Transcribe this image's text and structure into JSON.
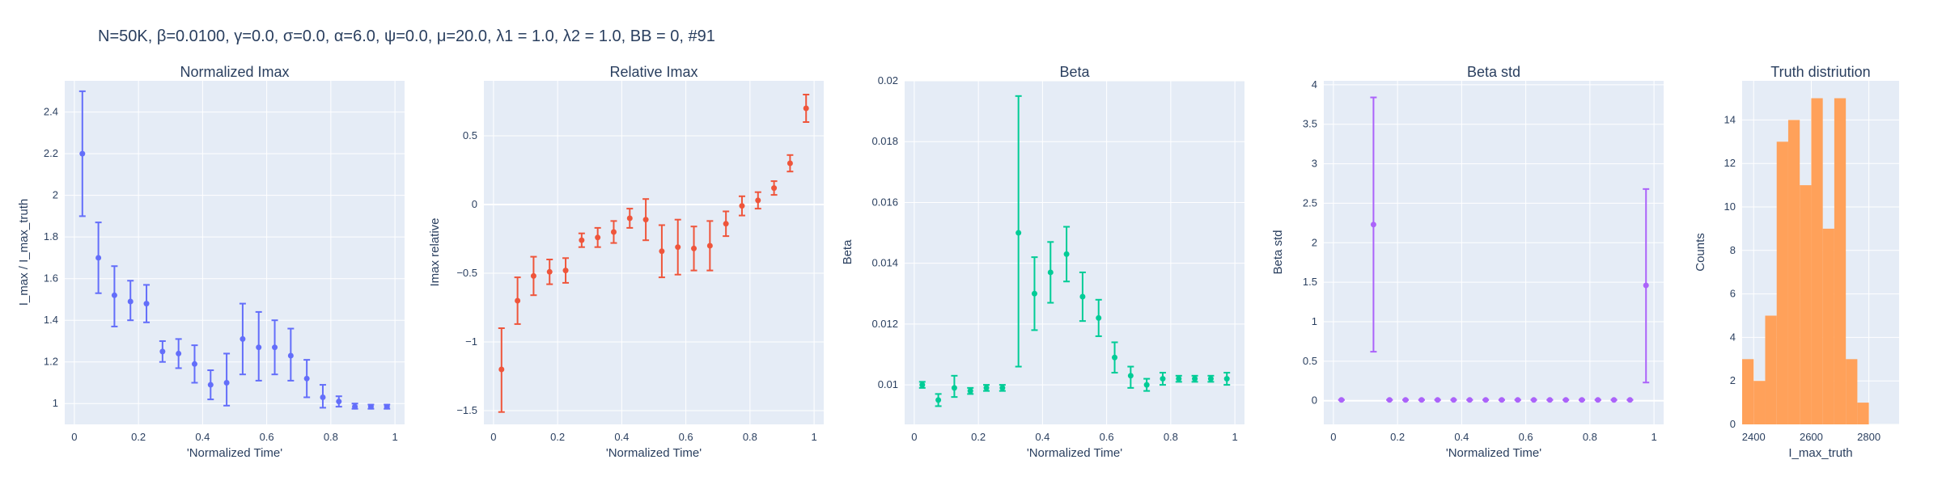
{
  "figure_title": "N=50K, β=0.0100, γ=0.0, σ=0.0,  α=6.0, ψ=0.0, μ=20.0, λ1 = 1.0, λ2 = 1.0, BB = 0, #91",
  "colors": {
    "panel_bg": "#e5ecf6",
    "grid": "#ffffff",
    "text": "#2a3f5f",
    "series": [
      "#636efa",
      "#ef553b",
      "#00cc96",
      "#ab63fa",
      "#ffa15a"
    ]
  },
  "chart_data": [
    {
      "type": "scatter",
      "title": "Normalized Imax",
      "xlabel": "'Normalized Time'",
      "ylabel": "I_max / I_max_truth",
      "xlim": [
        -0.03,
        1.03
      ],
      "ylim": [
        0.9,
        2.55
      ],
      "xticks": [
        0,
        0.2,
        0.4,
        0.6,
        0.8,
        1
      ],
      "xtick_labels": [
        "0",
        "0.2",
        "0.4",
        "0.6",
        "0.8",
        "1"
      ],
      "yticks": [
        1,
        1.2,
        1.4,
        1.6,
        1.8,
        2,
        2.2,
        2.4
      ],
      "ytick_labels": [
        "1",
        "1.2",
        "1.4",
        "1.6",
        "1.8",
        "2",
        "2.2",
        "2.4"
      ],
      "grid": true,
      "error_bars": true,
      "color": "#636efa",
      "x": [
        0.025,
        0.075,
        0.125,
        0.175,
        0.225,
        0.275,
        0.325,
        0.375,
        0.425,
        0.475,
        0.525,
        0.575,
        0.625,
        0.675,
        0.725,
        0.775,
        0.825,
        0.875,
        0.925,
        0.975
      ],
      "y": [
        2.2,
        1.7,
        1.52,
        1.49,
        1.48,
        1.25,
        1.24,
        1.19,
        1.09,
        1.1,
        1.31,
        1.27,
        1.27,
        1.23,
        1.12,
        1.03,
        1.01,
        0.985,
        0.985,
        0.985
      ],
      "y_lower": [
        1.9,
        1.53,
        1.37,
        1.4,
        1.39,
        1.2,
        1.17,
        1.1,
        1.02,
        0.99,
        1.14,
        1.11,
        1.14,
        1.11,
        1.03,
        0.98,
        0.985,
        0.975,
        0.975,
        0.975
      ],
      "y_upper": [
        2.5,
        1.87,
        1.66,
        1.59,
        1.57,
        1.3,
        1.31,
        1.28,
        1.16,
        1.24,
        1.48,
        1.44,
        1.4,
        1.36,
        1.21,
        1.09,
        1.035,
        1.0,
        0.995,
        0.995
      ]
    },
    {
      "type": "scatter",
      "title": "Relative Imax",
      "xlabel": "'Normalized Time'",
      "ylabel": "Imax relative",
      "xlim": [
        -0.03,
        1.03
      ],
      "ylim": [
        -1.6,
        0.9
      ],
      "xticks": [
        0,
        0.2,
        0.4,
        0.6,
        0.8,
        1
      ],
      "xtick_labels": [
        "0",
        "0.2",
        "0.4",
        "0.6",
        "0.8",
        "1"
      ],
      "yticks": [
        -1.5,
        -1,
        -0.5,
        0,
        0.5
      ],
      "ytick_labels": [
        "−1.5",
        "−1",
        "−0.5",
        "0",
        "0.5"
      ],
      "grid": true,
      "error_bars": true,
      "color": "#ef553b",
      "x": [
        0.025,
        0.075,
        0.125,
        0.175,
        0.225,
        0.275,
        0.325,
        0.375,
        0.425,
        0.475,
        0.525,
        0.575,
        0.625,
        0.675,
        0.725,
        0.775,
        0.825,
        0.875,
        0.925,
        0.975
      ],
      "y": [
        -1.2,
        -0.7,
        -0.52,
        -0.49,
        -0.48,
        -0.26,
        -0.24,
        -0.2,
        -0.1,
        -0.11,
        -0.34,
        -0.31,
        -0.32,
        -0.3,
        -0.14,
        -0.01,
        0.03,
        0.12,
        0.3,
        0.7
      ],
      "y_lower": [
        -1.51,
        -0.87,
        -0.66,
        -0.58,
        -0.57,
        -0.31,
        -0.31,
        -0.28,
        -0.17,
        -0.26,
        -0.53,
        -0.51,
        -0.48,
        -0.48,
        -0.23,
        -0.08,
        -0.03,
        0.07,
        0.24,
        0.6
      ],
      "y_upper": [
        -0.9,
        -0.53,
        -0.38,
        -0.4,
        -0.39,
        -0.21,
        -0.17,
        -0.12,
        -0.03,
        0.04,
        -0.15,
        -0.11,
        -0.16,
        -0.12,
        -0.05,
        0.06,
        0.09,
        0.17,
        0.36,
        0.8
      ]
    },
    {
      "type": "scatter",
      "title": "Beta",
      "xlabel": "'Normalized Time'",
      "ylabel": "Beta",
      "xlim": [
        -0.03,
        1.03
      ],
      "ylim": [
        0.0087,
        0.02
      ],
      "xticks": [
        0,
        0.2,
        0.4,
        0.6,
        0.8,
        1
      ],
      "xtick_labels": [
        "0",
        "0.2",
        "0.4",
        "0.6",
        "0.8",
        "1"
      ],
      "yticks": [
        0.01,
        0.012,
        0.014,
        0.016,
        0.018,
        0.02
      ],
      "ytick_labels": [
        "0.01",
        "0.012",
        "0.014",
        "0.016",
        "0.018",
        "0.02"
      ],
      "grid": true,
      "error_bars": true,
      "color": "#00cc96",
      "x": [
        0.025,
        0.075,
        0.125,
        0.175,
        0.225,
        0.275,
        0.325,
        0.375,
        0.425,
        0.475,
        0.525,
        0.575,
        0.625,
        0.675,
        0.725,
        0.775,
        0.825,
        0.875,
        0.925,
        0.975
      ],
      "y": [
        0.01,
        0.0095,
        0.0099,
        0.0098,
        0.0099,
        0.0099,
        0.015,
        0.013,
        0.0137,
        0.0143,
        0.0129,
        0.0122,
        0.0109,
        0.0103,
        0.01,
        0.0102,
        0.0102,
        0.0102,
        0.0102,
        0.0102
      ],
      "y_lower": [
        0.0099,
        0.0093,
        0.0096,
        0.0097,
        0.0098,
        0.0098,
        0.0106,
        0.0118,
        0.0127,
        0.0134,
        0.0121,
        0.0116,
        0.0104,
        0.0099,
        0.0098,
        0.01,
        0.0101,
        0.0101,
        0.0101,
        0.01
      ],
      "y_upper": [
        0.0101,
        0.0097,
        0.0103,
        0.0099,
        0.01,
        0.01,
        0.0195,
        0.0142,
        0.0147,
        0.0152,
        0.0137,
        0.0128,
        0.0114,
        0.0106,
        0.0102,
        0.0104,
        0.0103,
        0.0103,
        0.0103,
        0.0104
      ]
    },
    {
      "type": "scatter",
      "title": "Beta std",
      "xlabel": "'Normalized Time'",
      "ylabel": "Beta std",
      "xlim": [
        -0.03,
        1.03
      ],
      "ylim": [
        -0.3,
        4.05
      ],
      "xticks": [
        0,
        0.2,
        0.4,
        0.6,
        0.8,
        1
      ],
      "xtick_labels": [
        "0",
        "0.2",
        "0.4",
        "0.6",
        "0.8",
        "1"
      ],
      "yticks": [
        0,
        0.5,
        1,
        1.5,
        2,
        2.5,
        3,
        3.5,
        4
      ],
      "ytick_labels": [
        "0",
        "0.5",
        "1",
        "1.5",
        "2",
        "2.5",
        "3",
        "3.5",
        "4"
      ],
      "grid": true,
      "error_bars": true,
      "color": "#ab63fa",
      "x": [
        0.025,
        0.125,
        0.175,
        0.225,
        0.275,
        0.325,
        0.375,
        0.425,
        0.475,
        0.525,
        0.575,
        0.625,
        0.675,
        0.725,
        0.775,
        0.825,
        0.875,
        0.925,
        0.975
      ],
      "y": [
        0.01,
        2.23,
        0.01,
        0.01,
        0.01,
        0.01,
        0.01,
        0.01,
        0.01,
        0.01,
        0.01,
        0.01,
        0.01,
        0.01,
        0.01,
        0.01,
        0.01,
        0.01,
        1.46
      ],
      "y_lower": [
        0.01,
        0.62,
        0.01,
        0.01,
        0.01,
        0.01,
        0.01,
        0.01,
        0.01,
        0.01,
        0.01,
        0.01,
        0.01,
        0.01,
        0.01,
        0.01,
        0.01,
        0.01,
        0.23
      ],
      "y_upper": [
        0.01,
        3.84,
        0.01,
        0.01,
        0.01,
        0.01,
        0.01,
        0.01,
        0.01,
        0.01,
        0.01,
        0.01,
        0.01,
        0.01,
        0.01,
        0.01,
        0.01,
        0.01,
        2.68
      ]
    },
    {
      "type": "bar",
      "title": "Truth distriution",
      "xlabel": "I_max_truth",
      "ylabel": "Counts",
      "xlim": [
        2360,
        2905
      ],
      "ylim": [
        0,
        15.8
      ],
      "xticks": [
        2400,
        2600,
        2800
      ],
      "xtick_labels": [
        "2400",
        "2600",
        "2800"
      ],
      "yticks": [
        0,
        2,
        4,
        6,
        8,
        10,
        12,
        14
      ],
      "ytick_labels": [
        "0",
        "2",
        "4",
        "6",
        "8",
        "10",
        "12",
        "14"
      ],
      "grid": true,
      "color": "#ffa15a",
      "bin_edges": [
        2360,
        2400,
        2440,
        2480,
        2520,
        2560,
        2600,
        2640,
        2680,
        2720,
        2760,
        2800,
        2840,
        2880,
        2905
      ],
      "counts": [
        3,
        2,
        5,
        13,
        14,
        11,
        15,
        9,
        15,
        3,
        1,
        0,
        0,
        0
      ]
    }
  ]
}
